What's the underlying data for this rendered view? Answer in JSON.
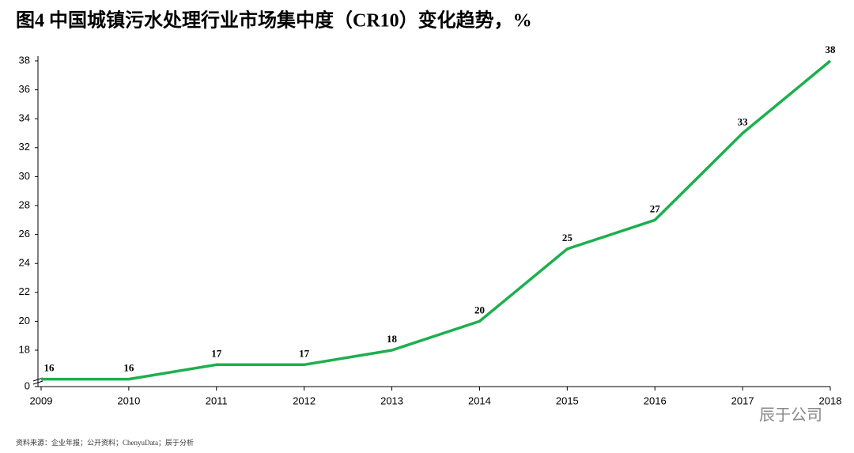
{
  "chart_data": {
    "type": "line",
    "title": "图4 中国城镇污水处理行业市场集中度（CR10）变化趋势，%",
    "categories": [
      "2009",
      "2010",
      "2011",
      "2012",
      "2013",
      "2014",
      "2015",
      "2016",
      "2017",
      "2018"
    ],
    "series": [
      {
        "name": "CR10",
        "color": "#1daf4e",
        "values": [
          16,
          16,
          17,
          17,
          18,
          20,
          25,
          27,
          33,
          38
        ]
      }
    ],
    "ylim": [
      0,
      38
    ],
    "yticks": [
      0,
      18,
      20,
      22,
      24,
      26,
      28,
      30,
      32,
      34,
      36,
      38
    ],
    "y_axis_break": true,
    "source": "资料来源：企业年报；公开资料；ChenyuData；辰于分析",
    "watermark": "辰于公司"
  }
}
